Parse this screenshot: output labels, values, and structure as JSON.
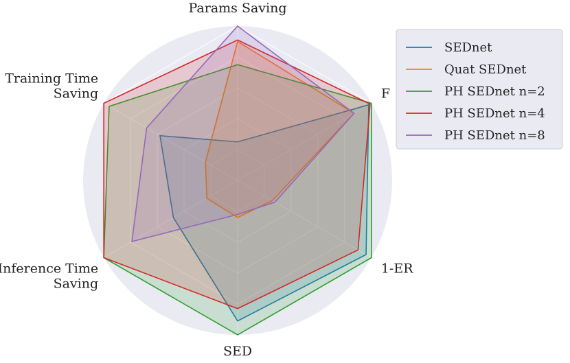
{
  "chart_data": {
    "type": "radar",
    "axes": [
      "Params Saving",
      "F",
      "1-ER",
      "SED",
      "Inference Time Saving",
      "Training Time Saving"
    ],
    "axis_label_lines": [
      [
        "Params Saving"
      ],
      [
        "F"
      ],
      [
        "1-ER"
      ],
      [
        "SED"
      ],
      [
        "Inference Time",
        "Saving"
      ],
      [
        "Training Time",
        "Saving"
      ]
    ],
    "rmax": 1.0,
    "grid": true,
    "legend_position": "top-right",
    "series": [
      {
        "name": "SEDnet",
        "color": "#1f77b4",
        "values": [
          0.25,
          0.98,
          0.96,
          0.91,
          0.48,
          0.58
        ]
      },
      {
        "name": "Quat SEDnet",
        "color": "#ff7f0e",
        "values": [
          0.9,
          0.87,
          0.26,
          0.24,
          0.23,
          0.24
        ]
      },
      {
        "name": "PH SEDnet n=2",
        "color": "#2ca02c",
        "values": [
          0.75,
          1.0,
          1.0,
          1.0,
          1.0,
          0.96
        ]
      },
      {
        "name": "PH SEDnet n=4",
        "color": "#d62728",
        "values": [
          0.91,
          0.99,
          0.9,
          0.83,
          1.0,
          1.0
        ]
      },
      {
        "name": "PH SEDnet n=8",
        "color": "#9467bd",
        "values": [
          1.0,
          0.87,
          0.28,
          0.22,
          0.79,
          0.68
        ]
      }
    ]
  }
}
